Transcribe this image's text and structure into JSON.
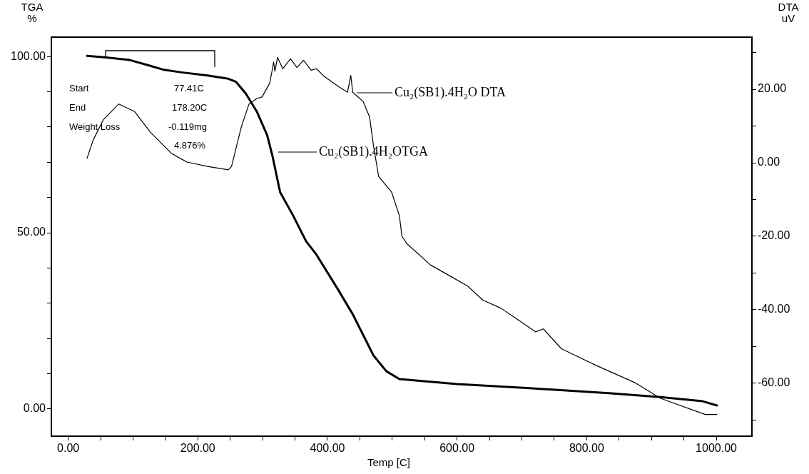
{
  "chart_data": {
    "type": "line",
    "xlabel": "Temp [C]",
    "ylabel": "TGA\n%",
    "y2label": "DTA\nuV",
    "xlim": [
      -26,
      1055
    ],
    "ylim": [
      -7.7,
      105.5
    ],
    "y2lim": [
      -74.4,
      34.2
    ],
    "xticks": [
      {
        "value": 0,
        "label": "0.00"
      },
      {
        "value": 50,
        "label": null
      },
      {
        "value": 100,
        "label": null
      },
      {
        "value": 150,
        "label": null
      },
      {
        "value": 200,
        "label": "200.00"
      },
      {
        "value": 250,
        "label": null
      },
      {
        "value": 300,
        "label": null
      },
      {
        "value": 350,
        "label": null
      },
      {
        "value": 400,
        "label": "400.00"
      },
      {
        "value": 450,
        "label": null
      },
      {
        "value": 500,
        "label": null
      },
      {
        "value": 550,
        "label": null
      },
      {
        "value": 600,
        "label": "600.00"
      },
      {
        "value": 650,
        "label": null
      },
      {
        "value": 700,
        "label": null
      },
      {
        "value": 750,
        "label": null
      },
      {
        "value": 800,
        "label": "800.00"
      },
      {
        "value": 850,
        "label": null
      },
      {
        "value": 900,
        "label": null
      },
      {
        "value": 950,
        "label": null
      },
      {
        "value": 1000,
        "label": "1000.00"
      }
    ],
    "yticks": [
      {
        "value": 0,
        "label": "0.00"
      },
      {
        "value": 10,
        "label": null
      },
      {
        "value": 20,
        "label": null
      },
      {
        "value": 30,
        "label": null
      },
      {
        "value": 40,
        "label": null
      },
      {
        "value": 50,
        "label": "50.00"
      },
      {
        "value": 60,
        "label": null
      },
      {
        "value": 70,
        "label": null
      },
      {
        "value": 80,
        "label": null
      },
      {
        "value": 90,
        "label": null
      },
      {
        "value": 100,
        "label": "100.00"
      }
    ],
    "y2ticks": [
      {
        "value": -70,
        "label": null
      },
      {
        "value": -60,
        "label": "-60.00"
      },
      {
        "value": -50,
        "label": null
      },
      {
        "value": -40,
        "label": "-40.00"
      },
      {
        "value": -30,
        "label": null
      },
      {
        "value": -20,
        "label": "-20.00"
      },
      {
        "value": -10,
        "label": null
      },
      {
        "value": 0,
        "label": "0.00"
      },
      {
        "value": 10,
        "label": null
      },
      {
        "value": 20,
        "label": "20.00"
      },
      {
        "value": 30,
        "label": null
      }
    ],
    "grid": false,
    "legend": "top",
    "marker": "none",
    "line_style": "solid",
    "series": [
      {
        "name": "Cu₂(SB1).4H₂OTGA",
        "color": "#000000",
        "x": [
          29,
          56,
          95,
          122,
          146,
          175,
          215,
          247,
          259,
          274,
          291,
          307,
          315,
          327,
          347,
          367,
          383,
          415,
          439,
          471,
          491,
          511,
          600,
          712,
          834,
          914,
          979,
          1001
        ],
        "values": [
          100.2,
          99.8,
          99,
          97.6,
          96.3,
          95.5,
          94.6,
          93.7,
          92.8,
          89.5,
          84.4,
          77.7,
          71.9,
          61.5,
          54.9,
          47.6,
          43.8,
          34.3,
          26.9,
          15.2,
          10.7,
          8.5,
          7.1,
          5.9,
          4.5,
          3.4,
          2.2,
          1.0
        ]
      },
      {
        "name": "Cu₂(SB1).4H₂O DTA",
        "color": "#000000",
        "axis": "y2",
        "x": [
          29,
          38.5,
          54.5,
          78,
          102,
          127,
          159,
          183,
          215,
          247,
          252,
          267,
          279,
          291,
          299,
          311,
          317,
          319,
          323,
          331,
          343,
          353,
          363,
          375,
          383,
          395,
          415,
          431,
          436,
          439,
          455,
          465,
          471,
          479,
          499,
          511,
          515,
          523,
          559,
          591,
          616,
          640,
          668,
          688,
          721,
          733,
          761,
          814,
          874,
          914,
          983,
          1001
        ],
        "values": [
          1.2,
          6.2,
          11.8,
          16.0,
          14.0,
          8.3,
          2.6,
          0.2,
          -1.0,
          -1.9,
          -1.0,
          9.7,
          16.0,
          17.5,
          17.9,
          21.7,
          27.4,
          24.9,
          28.7,
          25.6,
          28.3,
          25.9,
          27.9,
          25.2,
          25.6,
          23.5,
          21.0,
          19.2,
          23.8,
          19.2,
          16.7,
          12.5,
          4.7,
          -3.7,
          -8.0,
          -14.4,
          -20.0,
          -22.1,
          -27.8,
          -31.0,
          -33.5,
          -37.4,
          -39.6,
          -42.0,
          -46.0,
          -45.2,
          -50.6,
          -55.1,
          -59.8,
          -64.1,
          -68.5,
          -68.5
        ]
      }
    ],
    "annotations": [
      "Start",
      "77.41C",
      "End",
      "178.20C",
      "Weight Loss",
      "-0.119mg",
      "4.876%"
    ]
  }
}
